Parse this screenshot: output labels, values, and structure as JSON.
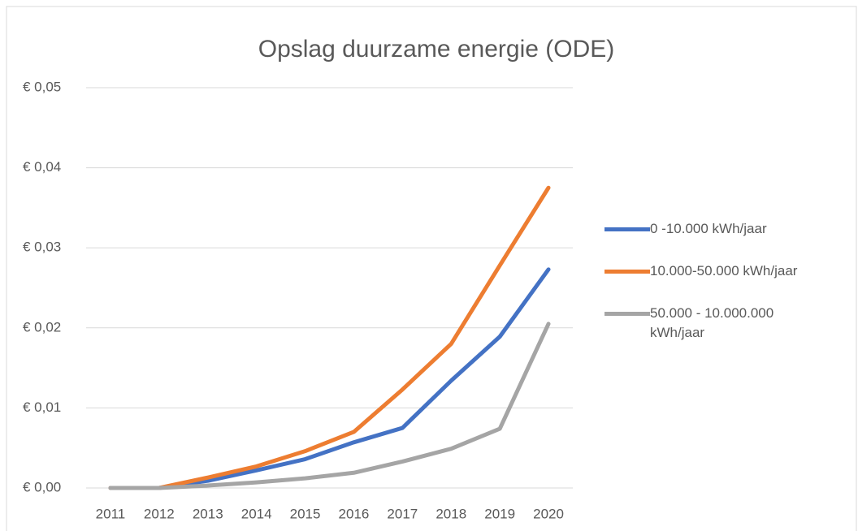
{
  "chart_data": {
    "type": "line",
    "title": "Opslag duurzame energie (ODE)",
    "categories": [
      "2011",
      "2012",
      "2013",
      "2014",
      "2015",
      "2016",
      "2017",
      "2018",
      "2019",
      "2020"
    ],
    "series": [
      {
        "name": "0 -10.000 kWh/jaar",
        "color": "#4472c4",
        "values": [
          0,
          0,
          0.0009,
          0.0022,
          0.0036,
          0.0057,
          0.0075,
          0.0134,
          0.0189,
          0.0273
        ]
      },
      {
        "name": "10.000-50.000 kWh/jaar",
        "color": "#ed7d31",
        "values": [
          0,
          0,
          0.0013,
          0.0027,
          0.0046,
          0.007,
          0.0123,
          0.018,
          0.0278,
          0.0375
        ]
      },
      {
        "name": "50.000 - 10.000.000 kWh/jaar",
        "color": "#a5a5a5",
        "values": [
          0,
          0,
          0.0003,
          0.0007,
          0.0012,
          0.0019,
          0.0033,
          0.0049,
          0.0074,
          0.0205
        ]
      }
    ],
    "ylim": [
      0,
      0.05
    ],
    "yticks": [
      {
        "value": 0,
        "label": "€ 0,00"
      },
      {
        "value": 0.01,
        "label": "€ 0,01"
      },
      {
        "value": 0.02,
        "label": "€ 0,02"
      },
      {
        "value": 0.03,
        "label": "€ 0,03"
      },
      {
        "value": 0.04,
        "label": "€ 0,04"
      },
      {
        "value": 0.05,
        "label": "€ 0,05"
      }
    ],
    "grid": true,
    "legend": "right"
  }
}
